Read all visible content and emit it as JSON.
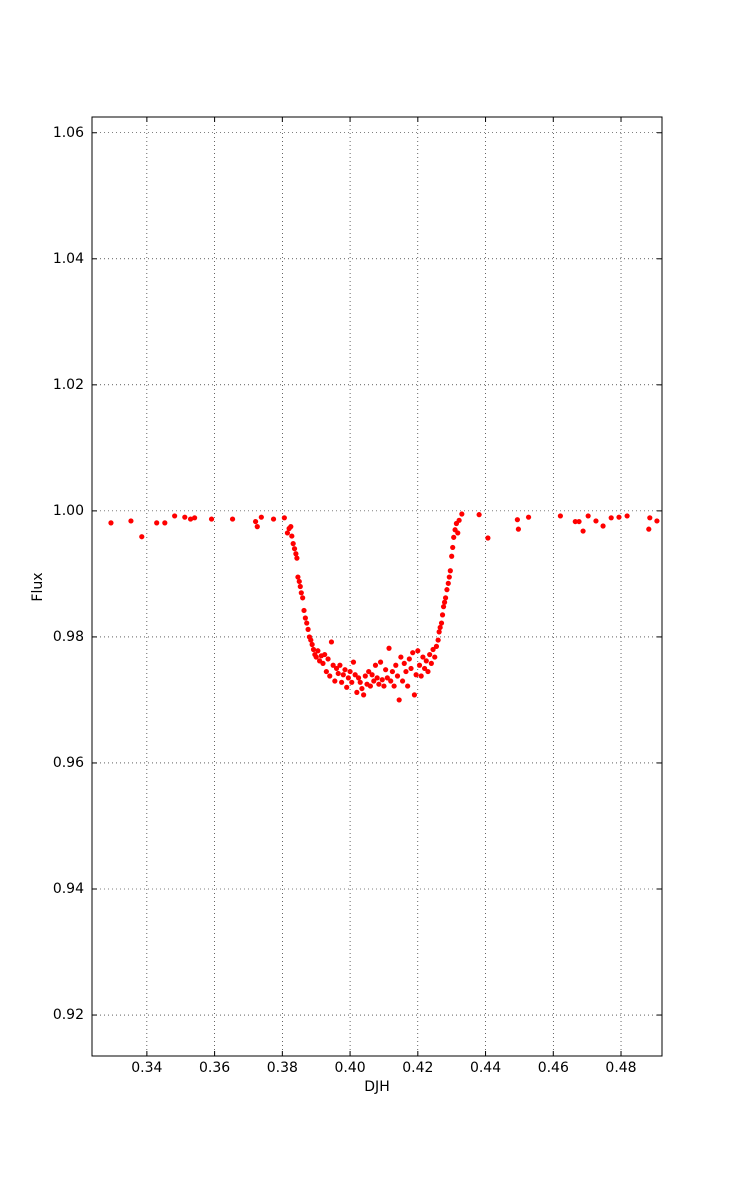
{
  "chart_data": {
    "type": "scatter",
    "x_label": "DJH",
    "y_label": "Flux",
    "xlim": [
      0.3238,
      0.4921
    ],
    "ylim": [
      0.9135,
      1.0625
    ],
    "xticks": [
      0.34,
      0.36,
      0.38,
      {
        "value": 0.4,
        "label": "0.40"
      },
      0.42,
      0.44,
      0.46,
      0.48
    ],
    "yticks": [
      0.92,
      0.94,
      0.96,
      0.98,
      {
        "value": 1.0,
        "label": "1.00"
      },
      1.02,
      1.04,
      1.06
    ],
    "grid": true,
    "series": [
      {
        "color": "#ff0000",
        "x": [
          0.3294,
          0.3353,
          0.3385,
          0.3429,
          0.3453,
          0.3482,
          0.3512,
          0.3529,
          0.3541,
          0.3591,
          0.3653,
          0.3721,
          0.3726,
          0.3738,
          0.3774,
          0.3806,
          0.3815,
          0.382,
          0.3825,
          0.3828,
          0.3832,
          0.3836,
          0.384,
          0.3843,
          0.3846,
          0.385,
          0.3853,
          0.3856,
          0.386,
          0.3864,
          0.3868,
          0.3872,
          0.3876,
          0.388,
          0.3884,
          0.3888,
          0.3892,
          0.3896,
          0.39,
          0.3905,
          0.391,
          0.3915,
          0.392,
          0.3925,
          0.393,
          0.3935,
          0.394,
          0.3945,
          0.395,
          0.3955,
          0.396,
          0.3965,
          0.397,
          0.3975,
          0.398,
          0.3985,
          0.399,
          0.3995,
          0.4,
          0.4005,
          0.401,
          0.4015,
          0.402,
          0.4025,
          0.403,
          0.4035,
          0.404,
          0.4045,
          0.405,
          0.4055,
          0.406,
          0.4065,
          0.407,
          0.4075,
          0.408,
          0.4085,
          0.409,
          0.4095,
          0.41,
          0.4105,
          0.411,
          0.4115,
          0.412,
          0.4125,
          0.413,
          0.4135,
          0.414,
          0.4145,
          0.415,
          0.4155,
          0.416,
          0.4165,
          0.417,
          0.4175,
          0.418,
          0.4185,
          0.419,
          0.4195,
          0.42,
          0.4205,
          0.421,
          0.4215,
          0.422,
          0.4225,
          0.423,
          0.4235,
          0.424,
          0.4245,
          0.425,
          0.4255,
          0.426,
          0.4263,
          0.4266,
          0.427,
          0.4273,
          0.4276,
          0.4279,
          0.4282,
          0.4286,
          0.429,
          0.4293,
          0.4296,
          0.43,
          0.4303,
          0.4306,
          0.431,
          0.4314,
          0.4318,
          0.4322,
          0.433,
          0.4381,
          0.4407,
          0.4494,
          0.4497,
          0.4527,
          0.4621,
          0.4665,
          0.4676,
          0.4688,
          0.4703,
          0.4726,
          0.4747,
          0.4771,
          0.4794,
          0.4818,
          0.4882,
          0.4885,
          0.4906
        ],
        "values": [
          0.9981,
          0.9984,
          0.9959,
          0.9981,
          0.9981,
          0.9992,
          0.999,
          0.9987,
          0.9989,
          0.9987,
          0.9987,
          0.9983,
          0.9975,
          0.999,
          0.9987,
          0.9989,
          0.9965,
          0.9972,
          0.9975,
          0.996,
          0.9948,
          0.994,
          0.9932,
          0.9925,
          0.9895,
          0.9888,
          0.988,
          0.987,
          0.9862,
          0.9842,
          0.983,
          0.9822,
          0.9812,
          0.98,
          0.9795,
          0.9788,
          0.978,
          0.9772,
          0.9768,
          0.9778,
          0.9762,
          0.977,
          0.9758,
          0.9772,
          0.9745,
          0.9765,
          0.9738,
          0.9792,
          0.9755,
          0.973,
          0.975,
          0.9742,
          0.9755,
          0.9728,
          0.974,
          0.9748,
          0.972,
          0.9735,
          0.9745,
          0.9728,
          0.976,
          0.974,
          0.9712,
          0.9735,
          0.9728,
          0.9718,
          0.9708,
          0.9738,
          0.9725,
          0.9745,
          0.9722,
          0.974,
          0.973,
          0.9755,
          0.9735,
          0.9725,
          0.976,
          0.9732,
          0.9722,
          0.9748,
          0.9735,
          0.9782,
          0.973,
          0.9745,
          0.9722,
          0.9755,
          0.9738,
          0.97,
          0.9768,
          0.973,
          0.9758,
          0.9745,
          0.9722,
          0.9765,
          0.975,
          0.9775,
          0.9708,
          0.974,
          0.9778,
          0.9755,
          0.9738,
          0.9768,
          0.975,
          0.9762,
          0.9745,
          0.9772,
          0.9758,
          0.978,
          0.9768,
          0.9785,
          0.9795,
          0.9808,
          0.9815,
          0.9822,
          0.9835,
          0.9848,
          0.9855,
          0.9862,
          0.9875,
          0.9885,
          0.9895,
          0.9905,
          0.9928,
          0.9942,
          0.9958,
          0.997,
          0.998,
          0.9965,
          0.9985,
          0.9995,
          0.9994,
          0.9957,
          0.9986,
          0.9971,
          0.999,
          0.9992,
          0.9983,
          0.9983,
          0.9968,
          0.9992,
          0.9984,
          0.9976,
          0.9989,
          0.999,
          0.9992,
          0.9971,
          0.9989,
          0.9984
        ]
      }
    ]
  }
}
